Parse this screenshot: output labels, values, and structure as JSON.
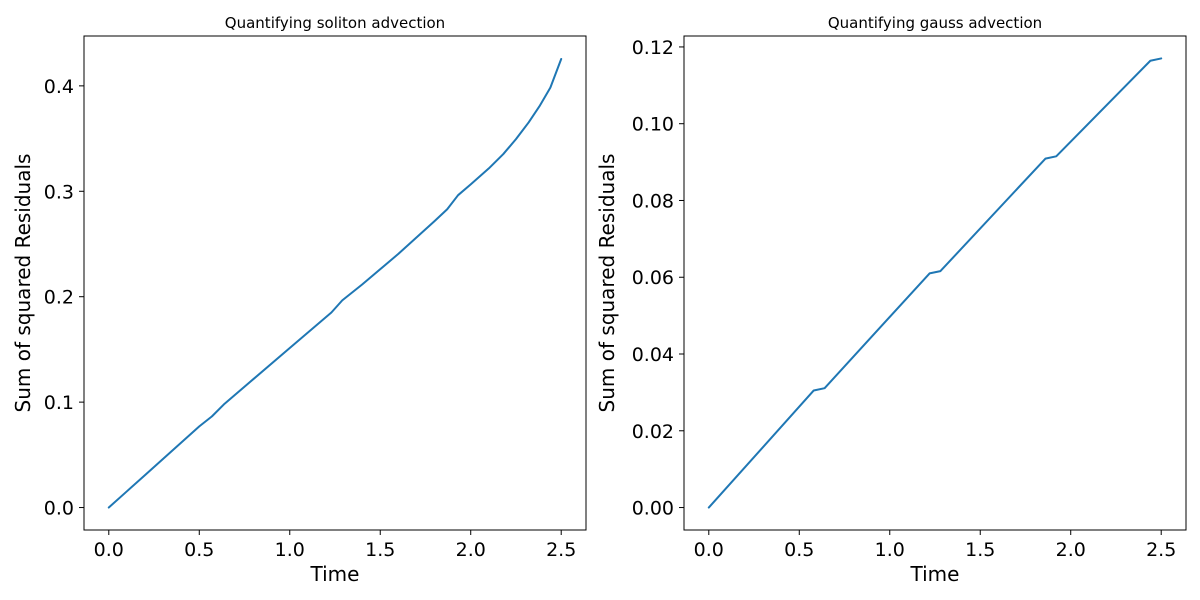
{
  "chart_data": [
    {
      "type": "line",
      "title": "Quantifying soliton advection",
      "xlabel": "Time",
      "ylabel": "Sum of squared Residuals",
      "xlim": [
        -0.137,
        2.637
      ],
      "ylim": [
        -0.0213,
        0.4473
      ],
      "xticks": [
        0.0,
        0.5,
        1.0,
        1.5,
        2.0,
        2.5
      ],
      "xtick_labels": [
        "0.0",
        "0.5",
        "1.0",
        "1.5",
        "2.0",
        "2.5"
      ],
      "yticks": [
        0.0,
        0.1,
        0.2,
        0.3,
        0.4
      ],
      "ytick_labels": [
        "0.0",
        "0.1",
        "0.2",
        "0.3",
        "0.4"
      ],
      "grid": false,
      "series": [
        {
          "color": "#1f77b4",
          "x": [
            0.0,
            0.1,
            0.2,
            0.3,
            0.4,
            0.5,
            0.57,
            0.64,
            0.8,
            1.0,
            1.2,
            1.23,
            1.29,
            1.4,
            1.6,
            1.8,
            1.87,
            1.93,
            2.0,
            2.1,
            2.18,
            2.25,
            2.32,
            2.38,
            2.44,
            2.5
          ],
          "y": [
            0.0,
            0.0154,
            0.0308,
            0.0462,
            0.0616,
            0.077,
            0.0865,
            0.0985,
            0.122,
            0.1513,
            0.1806,
            0.185,
            0.1965,
            0.2116,
            0.2406,
            0.2717,
            0.283,
            0.2963,
            0.3066,
            0.3217,
            0.3353,
            0.3495,
            0.3653,
            0.3807,
            0.3983,
            0.4255
          ]
        }
      ]
    },
    {
      "type": "line",
      "title": "Quantifying gauss advection",
      "xlabel": "Time",
      "ylabel": "Sum of squared Residuals",
      "xlim": [
        -0.137,
        2.637
      ],
      "ylim": [
        -0.00585,
        0.12285
      ],
      "xticks": [
        0.0,
        0.5,
        1.0,
        1.5,
        2.0,
        2.5
      ],
      "xtick_labels": [
        "0.0",
        "0.5",
        "1.0",
        "1.5",
        "2.0",
        "2.5"
      ],
      "yticks": [
        0.0,
        0.02,
        0.04,
        0.06,
        0.08,
        0.1,
        0.12
      ],
      "ytick_labels": [
        "0.00",
        "0.02",
        "0.04",
        "0.06",
        "0.08",
        "0.10",
        "0.12"
      ],
      "grid": false,
      "series": [
        {
          "color": "#1f77b4",
          "x": [
            0.0,
            0.58,
            0.64,
            1.22,
            1.28,
            1.86,
            1.92,
            2.44,
            2.5
          ],
          "y": [
            0.0,
            0.0305,
            0.0311,
            0.061,
            0.0616,
            0.0909,
            0.0915,
            0.1164,
            0.117
          ]
        }
      ]
    }
  ]
}
